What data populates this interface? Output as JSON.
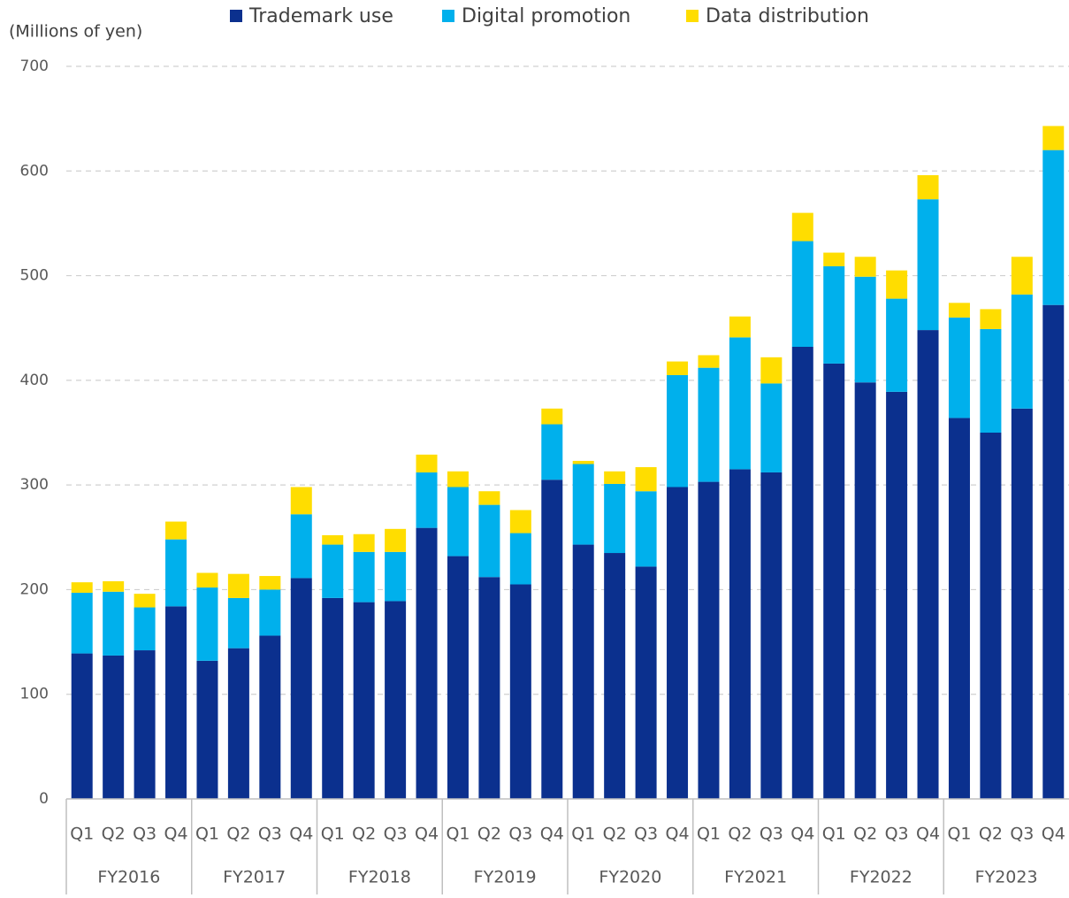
{
  "chart_data": {
    "type": "stacked_bar",
    "y_label": "(Millions of yen)",
    "categories": [
      "Q1",
      "Q2",
      "Q3",
      "Q4",
      "Q1",
      "Q2",
      "Q3",
      "Q4",
      "Q1",
      "Q2",
      "Q3",
      "Q4",
      "Q1",
      "Q2",
      "Q3",
      "Q4",
      "Q1",
      "Q2",
      "Q3",
      "Q4",
      "Q1",
      "Q2",
      "Q3",
      "Q4",
      "Q1",
      "Q2",
      "Q3",
      "Q4",
      "Q1",
      "Q2",
      "Q3",
      "Q4"
    ],
    "groups": [
      "FY2016",
      "FY2017",
      "FY2018",
      "FY2019",
      "FY2020",
      "FY2021",
      "FY2022",
      "FY2023"
    ],
    "series": [
      {
        "name": "Trademark use",
        "color": "#0b308e",
        "values": [
          139,
          137,
          142,
          184,
          132,
          144,
          156,
          211,
          192,
          188,
          189,
          259,
          232,
          212,
          205,
          305,
          243,
          235,
          222,
          298,
          303,
          315,
          312,
          432,
          416,
          398,
          389,
          448,
          364,
          350,
          373,
          472
        ]
      },
      {
        "name": "Digital promotion",
        "color": "#00b0ec",
        "values": [
          58,
          61,
          41,
          64,
          70,
          48,
          44,
          61,
          51,
          48,
          47,
          53,
          66,
          69,
          49,
          53,
          77,
          66,
          72,
          107,
          109,
          126,
          85,
          101,
          93,
          101,
          89,
          125,
          96,
          99,
          109,
          148
        ]
      },
      {
        "name": "Data distribution",
        "color": "#ffdd00",
        "values": [
          10,
          10,
          13,
          17,
          14,
          23,
          13,
          26,
          9,
          17,
          22,
          17,
          15,
          13,
          22,
          15,
          3,
          12,
          23,
          13,
          12,
          20,
          25,
          27,
          13,
          19,
          27,
          23,
          14,
          19,
          36,
          23
        ]
      }
    ],
    "ylim": [
      0,
      700
    ],
    "yticks": [
      0,
      100,
      200,
      300,
      400,
      500,
      600,
      700
    ],
    "grid": true,
    "legend": "top"
  }
}
